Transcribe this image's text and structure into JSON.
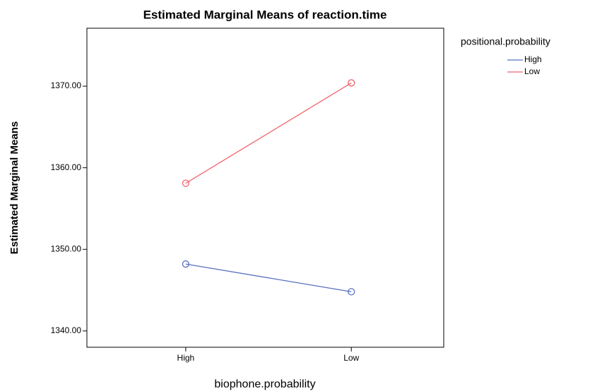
{
  "chart_data": {
    "type": "line",
    "title": "Estimated Marginal Means of reaction.time",
    "x_label": "biophone.probability",
    "y_label": "Estimated Marginal Means",
    "legend_title": "positional.probability",
    "categories": [
      "High",
      "Low"
    ],
    "series": [
      {
        "name": "High",
        "color": "#5b6fc0",
        "values": [
          1348.2,
          1344.8
        ]
      },
      {
        "name": "Low",
        "color": "#f0646c",
        "values": [
          1358.1,
          1370.4
        ]
      }
    ],
    "ylim": [
      1338.0,
      1377.1
    ],
    "yticks": [
      {
        "value": 1340,
        "label": "1340.00"
      },
      {
        "value": 1350,
        "label": "1350.00"
      },
      {
        "value": 1360,
        "label": "1360.00"
      },
      {
        "value": 1370,
        "label": "1370.00"
      }
    ]
  }
}
